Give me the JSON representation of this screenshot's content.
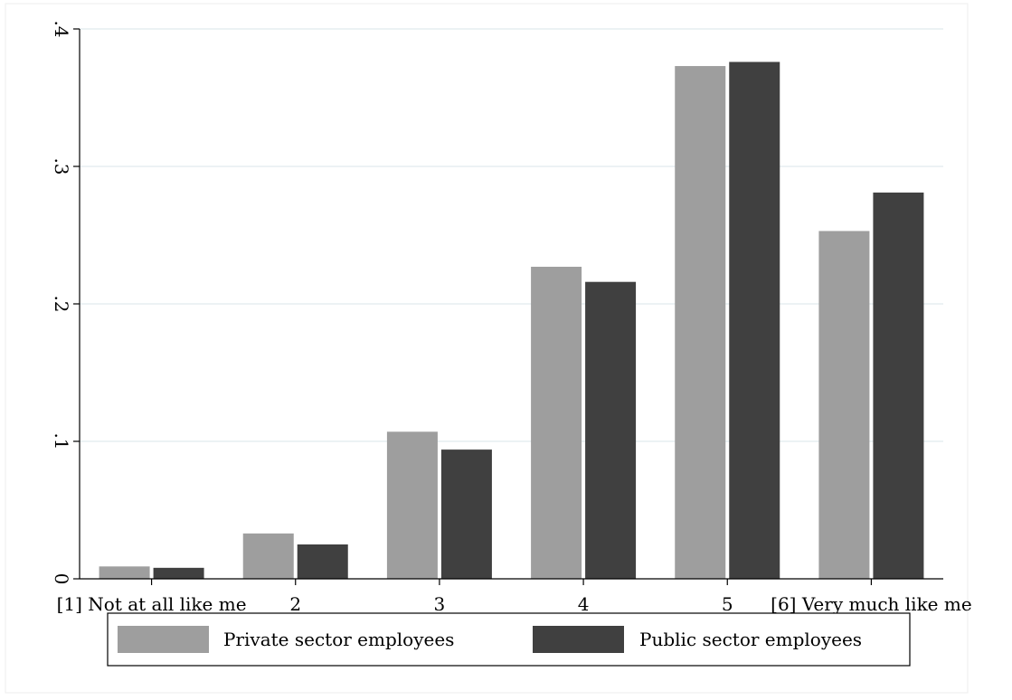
{
  "chart_data": {
    "type": "bar",
    "title": "",
    "xlabel": "",
    "ylabel": "",
    "categories": [
      "[1] Not at all like me",
      "2",
      "3",
      "4",
      "5",
      "[6] Very much like me"
    ],
    "series": [
      {
        "name": "Private sector employees",
        "values": [
          0.009,
          0.033,
          0.107,
          0.227,
          0.373,
          0.253
        ]
      },
      {
        "name": "Public sector employees",
        "values": [
          0.008,
          0.025,
          0.094,
          0.216,
          0.376,
          0.281
        ]
      }
    ],
    "ylim": [
      0,
      0.4
    ],
    "yticks": [
      0,
      0.1,
      0.2,
      0.3,
      0.4
    ],
    "ytick_labels": [
      "0",
      ".1",
      ".2",
      ".3",
      ".4"
    ],
    "grid": true,
    "legend_position": "bottom",
    "colors": {
      "series": [
        "#9e9e9e",
        "#404040"
      ],
      "grid": "#e6eef0",
      "axis": "#000000"
    }
  }
}
